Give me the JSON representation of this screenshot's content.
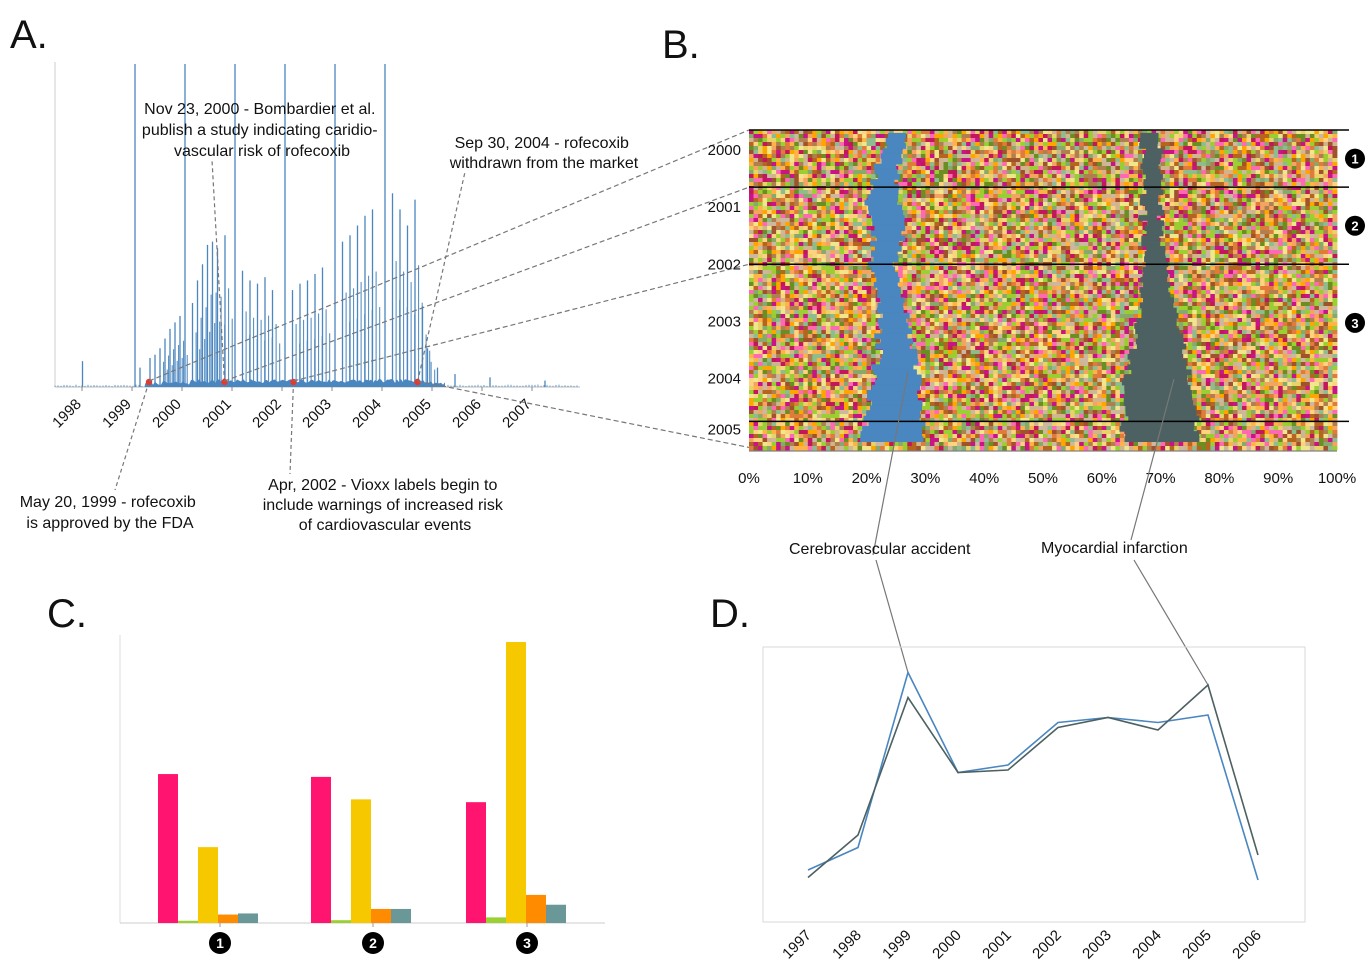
{
  "figure": {
    "panel_labels": {
      "a": "A.",
      "b": "B.",
      "c": "C.",
      "d": "D."
    },
    "marker_labels": [
      "1",
      "2",
      "3"
    ]
  },
  "colors": {
    "spikes": "#4a86bf",
    "event_dot": "#e23a2e",
    "cva": "#4a86bf",
    "mi": "#4d6162",
    "bar_pink": "#ff1470",
    "bar_green": "#9ad032",
    "bar_yellow": "#f5c800",
    "bar_orange": "#ff8c00",
    "bar_teal": "#6a9797",
    "line_cva": "#4a86bf",
    "line_mi": "#4d6162",
    "dash": "#777777"
  },
  "annotations": {
    "a_nov2000": [
      "Nov 23, 2000 - Bombardier et al.",
      "publish a study indicating caridio-",
      "vascular risk of rofecoxib"
    ],
    "a_sep2004": [
      "Sep 30, 2004 - rofecoxib",
      "withdrawn from the market"
    ],
    "a_may1999": [
      "May 20, 1999 - rofecoxib",
      "is approved by the FDA"
    ],
    "a_apr2002": [
      "Apr, 2002 - Vioxx labels begin to",
      "include warnings of increased risk",
      "of cardiovascular events"
    ],
    "b_cva": "Cerebrovascular accident",
    "b_mi": "Myocardial infarction"
  },
  "chart_data": [
    {
      "panel": "A",
      "type": "bar",
      "title": "",
      "xlabel": "",
      "ylabel": "",
      "x_ticks": [
        "1998",
        "1999",
        "2000",
        "2001",
        "2002",
        "2003",
        "2004",
        "2005",
        "2006",
        "2007"
      ],
      "xlim": [
        1997.5,
        2008.0
      ],
      "note": "daily report counts rendered as thin spikes; values are relative heights (0-1)",
      "spikes": [
        {
          "x": 1998.05,
          "value": 0.08
        },
        {
          "x": 1999.1,
          "value": 1.0
        },
        {
          "x": 1999.2,
          "value": 0.06
        },
        {
          "x": 1999.4,
          "value": 0.09
        },
        {
          "x": 1999.5,
          "value": 0.1
        },
        {
          "x": 1999.6,
          "value": 0.12
        },
        {
          "x": 1999.7,
          "value": 0.15
        },
        {
          "x": 1999.8,
          "value": 0.18
        },
        {
          "x": 1999.9,
          "value": 0.2
        },
        {
          "x": 2000.0,
          "value": 0.22
        },
        {
          "x": 2000.1,
          "value": 1.0
        },
        {
          "x": 2000.25,
          "value": 0.26
        },
        {
          "x": 2000.35,
          "value": 0.33
        },
        {
          "x": 2000.45,
          "value": 0.38
        },
        {
          "x": 2000.55,
          "value": 0.44
        },
        {
          "x": 2000.65,
          "value": 0.45
        },
        {
          "x": 2000.75,
          "value": 0.43
        },
        {
          "x": 2000.9,
          "value": 0.47
        },
        {
          "x": 2001.1,
          "value": 1.0
        },
        {
          "x": 2001.25,
          "value": 0.36
        },
        {
          "x": 2001.4,
          "value": 0.33
        },
        {
          "x": 2001.55,
          "value": 0.32
        },
        {
          "x": 2001.7,
          "value": 0.34
        },
        {
          "x": 2001.85,
          "value": 0.3
        },
        {
          "x": 2002.1,
          "value": 1.0
        },
        {
          "x": 2002.25,
          "value": 0.3
        },
        {
          "x": 2002.4,
          "value": 0.32
        },
        {
          "x": 2002.55,
          "value": 0.33
        },
        {
          "x": 2002.7,
          "value": 0.35
        },
        {
          "x": 2002.85,
          "value": 0.37
        },
        {
          "x": 2003.1,
          "value": 1.0
        },
        {
          "x": 2003.25,
          "value": 0.45
        },
        {
          "x": 2003.4,
          "value": 0.47
        },
        {
          "x": 2003.55,
          "value": 0.5
        },
        {
          "x": 2003.7,
          "value": 0.53
        },
        {
          "x": 2003.85,
          "value": 0.55
        },
        {
          "x": 2004.1,
          "value": 1.0
        },
        {
          "x": 2004.25,
          "value": 0.6
        },
        {
          "x": 2004.4,
          "value": 0.55
        },
        {
          "x": 2004.55,
          "value": 0.5
        },
        {
          "x": 2004.7,
          "value": 0.58
        },
        {
          "x": 2004.85,
          "value": 0.25
        },
        {
          "x": 2004.95,
          "value": 0.12
        },
        {
          "x": 2005.15,
          "value": 0.06
        },
        {
          "x": 2005.5,
          "value": 0.04
        },
        {
          "x": 2006.2,
          "value": 0.03
        },
        {
          "x": 2007.3,
          "value": 0.02
        }
      ],
      "events": [
        {
          "date": "May 20, 1999",
          "x": 1999.38
        },
        {
          "date": "Nov 23, 2000",
          "x": 2000.89
        },
        {
          "date": "Apr, 2002",
          "x": 2002.27
        },
        {
          "date": "Sep 30, 2004",
          "x": 2004.75
        }
      ]
    },
    {
      "panel": "B",
      "type": "area",
      "title": "",
      "xlabel": "",
      "ylabel": "",
      "y_ticks": [
        "2000",
        "2001",
        "2002",
        "2003",
        "2004",
        "2005"
      ],
      "x_ticks": [
        "0%",
        "10%",
        "20%",
        "30%",
        "40%",
        "50%",
        "60%",
        "70%",
        "80%",
        "90%",
        "100%"
      ],
      "xlim": [
        0,
        100
      ],
      "ylim": [
        1999.65,
        2005.25
      ],
      "period_boundaries": [
        1999.65,
        2000.65,
        2002.0,
        2004.75
      ],
      "periods": [
        "1",
        "2",
        "3"
      ],
      "series": [
        {
          "name": "Cerebrovascular accident",
          "y": [
            1999.7,
            2000.5,
            2001.0,
            2001.5,
            2002.0,
            2002.5,
            2003.0,
            2003.5,
            2004.0,
            2004.5,
            2005.1
          ],
          "left": [
            24,
            21,
            20,
            21,
            21,
            22,
            22,
            22,
            21,
            20,
            19
          ],
          "right": [
            27,
            25,
            26,
            26,
            25,
            26,
            27,
            28,
            29,
            29,
            30
          ]
        },
        {
          "name": "Myocardial infarction",
          "y": [
            1999.7,
            2000.5,
            2001.0,
            2001.5,
            2002.0,
            2002.5,
            2003.0,
            2003.5,
            2004.0,
            2004.5,
            2005.1
          ],
          "left": [
            67,
            67,
            67,
            67,
            67,
            67,
            66,
            65,
            64,
            64,
            63
          ],
          "right": [
            70,
            70,
            70,
            70,
            71,
            72,
            73,
            74,
            75,
            76,
            76
          ]
        }
      ]
    },
    {
      "panel": "C",
      "type": "bar",
      "title": "",
      "xlabel": "",
      "ylabel": "",
      "categories": [
        "1",
        "2",
        "3"
      ],
      "ylim": [
        0,
        100
      ],
      "series": [
        {
          "color_key": "bar_pink",
          "values": [
            53,
            52,
            43
          ]
        },
        {
          "color_key": "bar_green",
          "values": [
            0.8,
            1.0,
            2.0
          ]
        },
        {
          "color_key": "bar_yellow",
          "values": [
            27,
            44,
            100
          ]
        },
        {
          "color_key": "bar_orange",
          "values": [
            3,
            5,
            10
          ]
        },
        {
          "color_key": "bar_teal",
          "values": [
            3.4,
            5,
            6.5
          ]
        }
      ]
    },
    {
      "panel": "D",
      "type": "line",
      "title": "",
      "xlabel": "",
      "ylabel": "",
      "x": [
        "1997",
        "1998",
        "1999",
        "2000",
        "2001",
        "2002",
        "2003",
        "2004",
        "2005",
        "2006"
      ],
      "ylim": [
        0,
        100
      ],
      "series": [
        {
          "name": "Cerebrovascular accident",
          "color_key": "line_cva",
          "values": [
            16,
            25,
            95,
            55,
            58,
            75,
            77,
            75,
            78,
            12
          ]
        },
        {
          "name": "Myocardial infarction",
          "color_key": "line_mi",
          "values": [
            13,
            30,
            85,
            55,
            56,
            73,
            77,
            72,
            90,
            22
          ]
        }
      ]
    }
  ]
}
